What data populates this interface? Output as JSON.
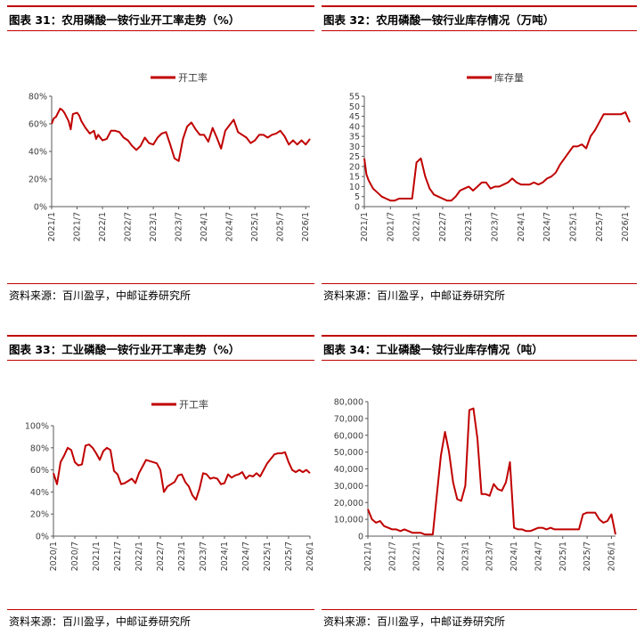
{
  "colors": {
    "accent": "#c00000",
    "line": "#c00000",
    "axis": "#595959",
    "text": "#404040"
  },
  "chart_data": [
    {
      "figure_title": "图表 31：农用磷酸一铵行业开工率走势（%）",
      "source": "资料来源：百川盈孚，中邮证券研究所",
      "type": "line",
      "legend": "开工率",
      "legend_position": "top-center",
      "grid": false,
      "ylim": [
        0,
        80
      ],
      "y_ticks": [
        "0%",
        "20%",
        "40%",
        "60%",
        "80%"
      ],
      "xlim": [
        "2021/1",
        "2026/2"
      ],
      "x_ticks": [
        "2021/1",
        "2021/7",
        "2022/1",
        "2022/7",
        "2023/1",
        "2023/7",
        "2024/1",
        "2024/7",
        "2025/1",
        "2025/7",
        "2026/1"
      ],
      "series": [
        {
          "name": "开工率",
          "x": [
            "2021/1",
            "2021/1.5",
            "2021/2",
            "2021/3",
            "2021/3.5",
            "2021/4",
            "2021/5",
            "2021/5.5",
            "2021/6",
            "2021/7",
            "2021/7.5",
            "2021/8",
            "2021/9",
            "2021/10",
            "2021/11",
            "2021/11.5",
            "2021/12",
            "2022/1",
            "2022/2",
            "2022/3",
            "2022/4",
            "2022/5",
            "2022/6",
            "2022/7",
            "2022/8",
            "2022/9",
            "2022/10",
            "2022/11",
            "2022/12",
            "2023/1",
            "2023/2",
            "2023/3",
            "2023/4",
            "2023/5",
            "2023/6",
            "2023/7",
            "2023/8",
            "2023/9",
            "2023/10",
            "2023/11",
            "2023/12",
            "2024/1",
            "2024/2",
            "2024/3",
            "2024/4",
            "2024/5",
            "2024/6",
            "2024/7",
            "2024/8",
            "2024/9",
            "2024/10",
            "2024/11",
            "2024/12",
            "2025/1",
            "2025/2",
            "2025/3",
            "2025/4",
            "2025/5",
            "2025/6",
            "2025/7",
            "2025/8",
            "2025/9",
            "2025/10",
            "2025/11",
            "2025/12",
            "2026/1",
            "2026/2"
          ],
          "values": [
            60,
            64,
            65,
            71,
            70,
            68,
            62,
            56,
            67,
            68,
            66,
            62,
            57,
            53,
            55,
            49,
            52,
            48,
            49,
            55,
            55,
            54,
            50,
            48,
            44,
            41,
            44,
            50,
            46,
            45,
            50,
            53,
            54,
            45,
            35,
            33,
            49,
            58,
            61,
            56,
            52,
            52,
            47,
            57,
            50,
            42,
            55,
            59,
            63,
            54,
            52,
            50,
            46,
            48,
            52,
            52,
            50,
            52,
            53,
            55,
            51,
            45,
            48,
            45,
            48,
            45,
            49
          ]
        }
      ]
    },
    {
      "figure_title": "图表 32：农用磷酸一铵行业库存情况（万吨）",
      "source": "资料来源：百川盈孚，中邮证券研究所",
      "type": "line",
      "legend": "库存量",
      "legend_position": "top-center",
      "grid": false,
      "ylim": [
        0,
        55
      ],
      "y_ticks": [
        "0",
        "5",
        "10",
        "15",
        "20",
        "25",
        "30",
        "35",
        "40",
        "45",
        "50",
        "55"
      ],
      "xlim": [
        "2021/1",
        "2026/2"
      ],
      "x_ticks": [
        "2021/1",
        "2021/7",
        "2022/1",
        "2022/7",
        "2023/1",
        "2023/7",
        "2024/1",
        "2024/7",
        "2025/1",
        "2025/7",
        "2026/1"
      ],
      "series": [
        {
          "name": "库存量",
          "x": [
            "2021/1",
            "2021/1.5",
            "2021/2",
            "2021/3",
            "2021/4",
            "2021/5",
            "2021/6",
            "2021/7",
            "2021/8",
            "2021/9",
            "2021/10",
            "2021/11",
            "2021/12",
            "2022/1",
            "2022/2",
            "2022/3",
            "2022/4",
            "2022/5",
            "2022/6",
            "2022/7",
            "2022/8",
            "2022/9",
            "2022/10",
            "2022/11",
            "2022/12",
            "2023/1",
            "2023/2",
            "2023/3",
            "2023/4",
            "2023/5",
            "2023/6",
            "2023/7",
            "2023/8",
            "2023/9",
            "2023/10",
            "2023/11",
            "2023/12",
            "2024/1",
            "2024/2",
            "2024/3",
            "2024/4",
            "2024/5",
            "2024/6",
            "2024/7",
            "2024/8",
            "2024/9",
            "2024/10",
            "2024/11",
            "2024/12",
            "2025/1",
            "2025/2",
            "2025/3",
            "2025/4",
            "2025/5",
            "2025/6",
            "2025/7",
            "2025/8",
            "2025/9",
            "2025/10",
            "2025/11",
            "2025/12",
            "2026/1",
            "2026/2"
          ],
          "values": [
            24,
            16,
            13,
            9,
            7,
            5,
            4,
            3,
            3,
            4,
            4,
            4,
            4,
            22,
            24,
            15,
            9,
            6,
            5,
            4,
            3,
            3,
            5,
            8,
            9,
            10,
            8,
            10,
            12,
            12,
            9,
            10,
            10,
            11,
            12,
            14,
            12,
            11,
            11,
            11,
            12,
            11,
            12,
            14,
            15,
            17,
            21,
            24,
            27,
            30,
            30,
            31,
            29,
            35,
            38,
            42,
            46,
            46,
            46,
            46,
            46,
            47,
            42
          ]
        }
      ]
    },
    {
      "figure_title": "图表 33：工业磷酸一铵行业开工率走势（%）",
      "source": "资料来源：百川盈孚，中邮证券研究所",
      "type": "line",
      "legend": "开工率",
      "legend_position": "top-center",
      "grid": false,
      "ylim": [
        0,
        100
      ],
      "y_ticks": [
        "0%",
        "20%",
        "40%",
        "60%",
        "80%",
        "100%"
      ],
      "xlim": [
        "2020/1",
        "2026/1"
      ],
      "x_ticks": [
        "2020/1",
        "2020/7",
        "2021/1",
        "2021/7",
        "2022/1",
        "2022/7",
        "2023/1",
        "2023/7",
        "2024/1",
        "2024/7",
        "2025/1",
        "2025/7",
        "2026/1"
      ],
      "series": [
        {
          "name": "开工率",
          "x": [
            "2020/1",
            "2020/2",
            "2020/3",
            "2020/4",
            "2020/5",
            "2020/6",
            "2020/7",
            "2020/8",
            "2020/9",
            "2020/10",
            "2020/11",
            "2020/12",
            "2021/1",
            "2021/2",
            "2021/3",
            "2021/4",
            "2021/5",
            "2021/6",
            "2021/7",
            "2021/8",
            "2021/9",
            "2021/10",
            "2021/11",
            "2021/12",
            "2022/1",
            "2022/2",
            "2022/3",
            "2022/4",
            "2022/5",
            "2022/6",
            "2022/7",
            "2022/8",
            "2022/9",
            "2022/10",
            "2022/11",
            "2022/12",
            "2023/1",
            "2023/2",
            "2023/3",
            "2023/4",
            "2023/5",
            "2023/6",
            "2023/7",
            "2023/8",
            "2023/9",
            "2023/10",
            "2023/11",
            "2023/12",
            "2024/1",
            "2024/2",
            "2024/3",
            "2024/4",
            "2024/5",
            "2024/6",
            "2024/7",
            "2024/8",
            "2024/9",
            "2024/10",
            "2024/11",
            "2024/12",
            "2025/1",
            "2025/2",
            "2025/3",
            "2025/4",
            "2025/5",
            "2025/6",
            "2025/7",
            "2025/8",
            "2025/9",
            "2025/10",
            "2025/11",
            "2025/12",
            "2026/1"
          ],
          "values": [
            57,
            47,
            67,
            73,
            80,
            78,
            67,
            64,
            65,
            82,
            83,
            80,
            75,
            69,
            77,
            80,
            78,
            59,
            56,
            47,
            48,
            50,
            52,
            48,
            57,
            63,
            69,
            68,
            67,
            66,
            60,
            40,
            45,
            47,
            49,
            55,
            56,
            49,
            45,
            37,
            33,
            43,
            57,
            56,
            52,
            53,
            52,
            47,
            48,
            56,
            53,
            55,
            56,
            58,
            52,
            55,
            54,
            57,
            54,
            60,
            66,
            70,
            74,
            75,
            75,
            76,
            67,
            60,
            58,
            60,
            58,
            60,
            57
          ]
        }
      ]
    },
    {
      "figure_title": "图表 34：工业磷酸一铵行业库存情况（吨）",
      "source": "资料来源：百川盈孚，中邮证券研究所",
      "type": "line",
      "legend": "",
      "legend_position": "none",
      "grid": false,
      "ylim": [
        0,
        80000
      ],
      "y_ticks": [
        "0",
        "10,000",
        "20,000",
        "30,000",
        "40,000",
        "50,000",
        "60,000",
        "70,000",
        "80,000"
      ],
      "xlim": [
        "2021/1",
        "2026/2"
      ],
      "x_ticks": [
        "2021/1",
        "2021/7",
        "2022/1",
        "2022/7",
        "2023/1",
        "2023/7",
        "2024/1",
        "2024/7",
        "2025/1",
        "2025/7",
        "2026/1"
      ],
      "series": [
        {
          "name": "",
          "x": [
            "2021/1",
            "2021/2",
            "2021/3",
            "2021/4",
            "2021/5",
            "2021/6",
            "2021/7",
            "2021/8",
            "2021/9",
            "2021/10",
            "2021/11",
            "2021/12",
            "2022/1",
            "2022/2",
            "2022/3",
            "2022/4",
            "2022/5",
            "2022/6",
            "2022/7",
            "2022/8",
            "2022/9",
            "2022/10",
            "2022/11",
            "2022/12",
            "2023/1",
            "2023/2",
            "2023/3",
            "2023/4",
            "2023/5",
            "2023/6",
            "2023/7",
            "2023/8",
            "2023/9",
            "2023/10",
            "2023/11",
            "2023/12",
            "2024/1",
            "2024/2",
            "2024/3",
            "2024/4",
            "2024/5",
            "2024/6",
            "2024/7",
            "2024/8",
            "2024/9",
            "2024/10",
            "2024/11",
            "2024/12",
            "2025/1",
            "2025/2",
            "2025/3",
            "2025/4",
            "2025/5",
            "2025/6",
            "2025/7",
            "2025/8",
            "2025/9",
            "2025/10",
            "2025/11",
            "2025/12",
            "2026/1",
            "2026/2"
          ],
          "values": [
            16000,
            10000,
            8000,
            9000,
            6000,
            5000,
            4000,
            4000,
            3000,
            4000,
            3000,
            2000,
            2000,
            2000,
            1000,
            1000,
            1000,
            25000,
            48000,
            62000,
            50000,
            32000,
            22000,
            21000,
            30000,
            75000,
            76000,
            58000,
            25000,
            25000,
            24000,
            31000,
            28000,
            27000,
            32000,
            44000,
            5000,
            4000,
            4000,
            3000,
            3000,
            4000,
            5000,
            5000,
            4000,
            5000,
            4000,
            4000,
            4000,
            4000,
            4000,
            4000,
            4000,
            13000,
            14000,
            14000,
            14000,
            10000,
            8000,
            9000,
            13000,
            1000
          ]
        }
      ]
    }
  ]
}
